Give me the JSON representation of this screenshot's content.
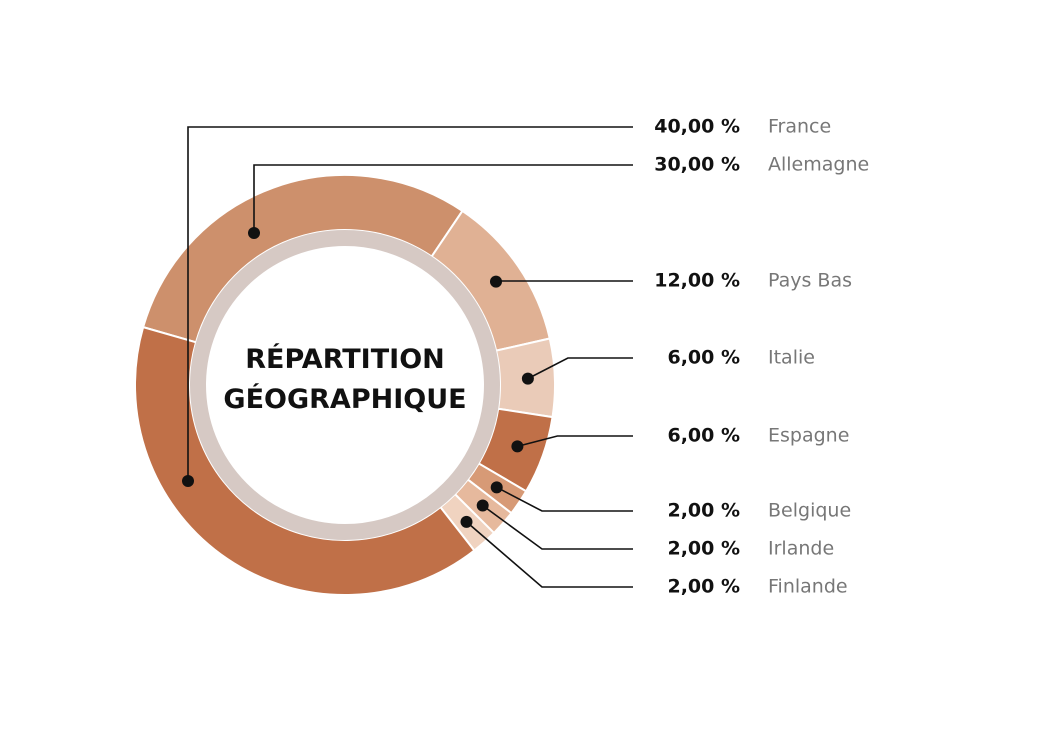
{
  "chart_data": {
    "type": "donut",
    "title": "RÉPARTITION GÉOGRAPHIQUE",
    "categories": [
      "France",
      "Allemagne",
      "Pays Bas",
      "Italie",
      "Espagne",
      "Belgique",
      "Irlande",
      "Finlande"
    ],
    "values": [
      40,
      30,
      12,
      6,
      6,
      2,
      2,
      2
    ],
    "value_labels": [
      "40,00 %",
      "30,00 %",
      "12,00 %",
      "6,00 %",
      "6,00 %",
      "2,00 %",
      "2,00 %",
      "2,00 %"
    ],
    "colors": [
      "#c07048",
      "#cd906c",
      "#e0b194",
      "#eacbb8",
      "#c07048",
      "#d79a76",
      "#e6b99d",
      "#f0d3c0"
    ]
  }
}
